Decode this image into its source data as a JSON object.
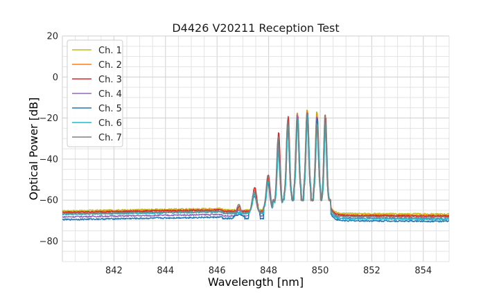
{
  "chart_data": {
    "type": "line",
    "title": "D4426 V20211 Reception Test",
    "xlabel": "Wavelength [nm]",
    "ylabel": "Optical Power [dB]",
    "xlim": [
      840,
      855
    ],
    "ylim": [
      -90,
      20
    ],
    "xticks": [
      842,
      844,
      846,
      848,
      850,
      852,
      854
    ],
    "yticks": [
      -80,
      -60,
      -40,
      -20,
      0,
      20
    ],
    "grid": true,
    "legend_position": "top-left",
    "series": [
      {
        "name": "Ch. 1",
        "color": "#bcbd22",
        "floor_left": -65.3,
        "floor_right": -66.5,
        "peaks": [
          -66,
          -57,
          -50,
          -34,
          -21,
          -17,
          -15.5,
          -16.5,
          -17.5
        ]
      },
      {
        "name": "Ch. 2",
        "color": "#ff7f0e",
        "floor_left": -65.8,
        "floor_right": -67.2,
        "peaks": [
          -64,
          -55,
          -49,
          -30,
          -20,
          -18,
          -16,
          -18,
          -19
        ]
      },
      {
        "name": "Ch. 3",
        "color": "#d62728",
        "floor_left": -66.0,
        "floor_right": -67.4,
        "peaks": [
          -63,
          -54,
          -48,
          -27,
          -19,
          -19,
          -17,
          -20,
          -19.5
        ]
      },
      {
        "name": "Ch. 4",
        "color": "#9467bd",
        "floor_left": -68.2,
        "floor_right": -68.8,
        "peaks": [
          -65,
          -56,
          -51,
          -33,
          -22,
          -18,
          -17,
          -19,
          -20
        ]
      },
      {
        "name": "Ch. 5",
        "color": "#1f77b4",
        "floor_left": -69.5,
        "floor_right": -70.0,
        "peaks": [
          -67,
          -58,
          -52,
          -36,
          -24,
          -20,
          -18,
          -20,
          -21
        ]
      },
      {
        "name": "Ch. 6",
        "color": "#17becf",
        "floor_left": -67.0,
        "floor_right": -69.0,
        "peaks": [
          -66,
          -57,
          -51,
          -35,
          -23,
          -20,
          -18,
          -23,
          -22
        ]
      },
      {
        "name": "Ch. 7",
        "color": "#7f7f7f",
        "floor_left": -66.6,
        "floor_right": -68.0,
        "peaks": [
          -62,
          -56,
          -48,
          -29,
          -21,
          -20,
          -17,
          -22,
          -18
        ]
      }
    ]
  }
}
